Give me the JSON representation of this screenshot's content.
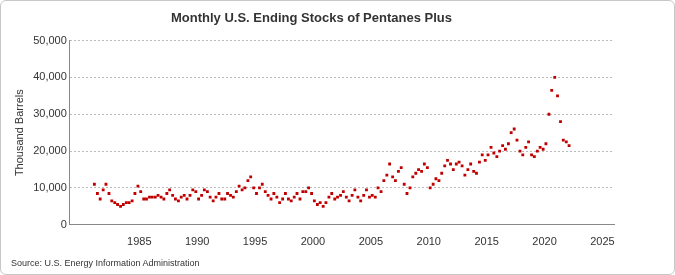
{
  "chart_data": {
    "type": "scatter",
    "title": "Monthly U.S. Ending Stocks of Pentanes Plus",
    "y_label": "Thousand Barrels",
    "source": "Source: U.S. Energy Information Administration",
    "color": "#c00000",
    "marker": "square",
    "grid": true,
    "xlim": [
      1979,
      2026
    ],
    "xticks": [
      1985,
      1990,
      1995,
      2000,
      2005,
      2010,
      2015,
      2020,
      2025
    ],
    "ylim": [
      0,
      50000
    ],
    "yticks": [
      0,
      {
        "value": 10000,
        "label": "10,000"
      },
      {
        "value": 20000,
        "label": "20,000"
      },
      {
        "value": 30000,
        "label": "30,000"
      },
      {
        "value": 40000,
        "label": "40,000"
      },
      {
        "value": 50000,
        "label": "50,000"
      }
    ],
    "x": [
      1981.12,
      1981.38,
      1981.62,
      1981.88,
      1982.12,
      1982.38,
      1982.62,
      1982.88,
      1983.12,
      1983.38,
      1983.62,
      1983.88,
      1984.12,
      1984.38,
      1984.62,
      1984.88,
      1985.12,
      1985.38,
      1985.62,
      1985.88,
      1986.12,
      1986.38,
      1986.62,
      1986.88,
      1987.12,
      1987.38,
      1987.62,
      1987.88,
      1988.12,
      1988.38,
      1988.62,
      1988.88,
      1989.12,
      1989.38,
      1989.62,
      1989.88,
      1990.12,
      1990.38,
      1990.62,
      1990.88,
      1991.12,
      1991.38,
      1991.62,
      1991.88,
      1992.12,
      1992.38,
      1992.62,
      1992.88,
      1993.12,
      1993.38,
      1993.62,
      1993.88,
      1994.12,
      1994.38,
      1994.62,
      1994.88,
      1995.12,
      1995.38,
      1995.62,
      1995.88,
      1996.12,
      1996.38,
      1996.62,
      1996.88,
      1997.12,
      1997.38,
      1997.62,
      1997.88,
      1998.12,
      1998.38,
      1998.62,
      1998.88,
      1999.12,
      1999.38,
      1999.62,
      1999.88,
      2000.12,
      2000.38,
      2000.62,
      2000.88,
      2001.12,
      2001.38,
      2001.62,
      2001.88,
      2002.12,
      2002.38,
      2002.62,
      2002.88,
      2003.12,
      2003.38,
      2003.62,
      2003.88,
      2004.12,
      2004.38,
      2004.62,
      2004.88,
      2005.12,
      2005.38,
      2005.62,
      2005.88,
      2006.12,
      2006.38,
      2006.62,
      2006.88,
      2007.12,
      2007.38,
      2007.62,
      2007.88,
      2008.12,
      2008.38,
      2008.62,
      2008.88,
      2009.12,
      2009.38,
      2009.62,
      2009.88,
      2010.12,
      2010.38,
      2010.62,
      2010.88,
      2011.12,
      2011.38,
      2011.62,
      2011.88,
      2012.12,
      2012.38,
      2012.62,
      2012.88,
      2013.12,
      2013.38,
      2013.62,
      2013.88,
      2014.12,
      2014.38,
      2014.62,
      2014.88,
      2015.12,
      2015.38,
      2015.62,
      2015.88,
      2016.12,
      2016.38,
      2016.62,
      2016.88,
      2017.12,
      2017.38,
      2017.62,
      2017.88,
      2018.12,
      2018.38,
      2018.62,
      2018.88,
      2019.12,
      2019.38,
      2019.62,
      2019.88,
      2020.12,
      2020.38,
      2020.62,
      2020.88,
      2021.12,
      2021.38,
      2021.62,
      2021.88,
      2022.12
    ],
    "values": [
      11000,
      8500,
      7000,
      9500,
      11000,
      8500,
      6500,
      6000,
      5500,
      5000,
      5500,
      6000,
      6000,
      6500,
      8500,
      10500,
      9000,
      7000,
      7000,
      7500,
      7500,
      7500,
      8000,
      7500,
      7000,
      8500,
      9500,
      8000,
      7000,
      6500,
      7500,
      8000,
      7000,
      8000,
      9500,
      9000,
      7000,
      8000,
      9500,
      9000,
      7500,
      6500,
      7500,
      8500,
      7000,
      7000,
      8500,
      8000,
      7500,
      9000,
      10500,
      9500,
      10000,
      12000,
      13000,
      10000,
      8500,
      10000,
      11000,
      9000,
      8000,
      7000,
      8500,
      7500,
      6000,
      7000,
      8500,
      7000,
      6500,
      7500,
      8500,
      7000,
      9000,
      9000,
      10000,
      8500,
      6500,
      5500,
      6000,
      5000,
      6000,
      7500,
      8500,
      7000,
      7500,
      8000,
      9000,
      7500,
      6500,
      8000,
      9500,
      7500,
      6500,
      8000,
      9500,
      7500,
      8000,
      7500,
      10000,
      9000,
      12000,
      13500,
      16500,
      13000,
      12000,
      14500,
      15500,
      11000,
      8500,
      10000,
      13000,
      14000,
      15000,
      14500,
      16500,
      15500,
      10000,
      11000,
      12500,
      12000,
      14000,
      16000,
      17500,
      16500,
      15000,
      16500,
      17000,
      16000,
      13500,
      15000,
      16500,
      14500,
      14000,
      17000,
      19000,
      17500,
      19000,
      21000,
      19500,
      18500,
      20000,
      21500,
      20500,
      22000,
      25000,
      26000,
      23000,
      20000,
      19000,
      21000,
      22500,
      19000,
      18500,
      20000,
      21000,
      20500,
      22000,
      30000,
      36500,
      40000,
      35000,
      28000,
      23000,
      22500,
      21500
    ]
  }
}
